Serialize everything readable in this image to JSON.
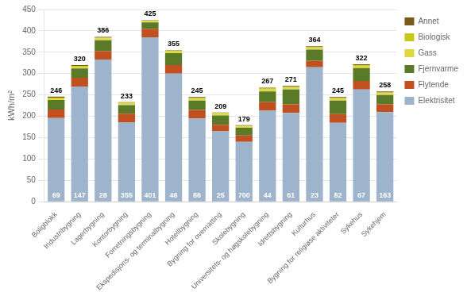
{
  "chart_data": {
    "type": "bar",
    "stacked": true,
    "grid": true,
    "legend": "right",
    "ylabel": "kWh/m²",
    "ylim": [
      0,
      450
    ],
    "yticks": [
      0,
      50,
      100,
      150,
      200,
      250,
      300,
      350,
      400,
      450
    ],
    "categories": [
      "Boligblokk",
      "Industribygning",
      "Lagerbygning",
      "Kontorbygning",
      "Forretningsbygning",
      "Ekspedisjons- og terminalbygning",
      "Hotellbygning",
      "Bygning for overnatting",
      "Skolebygning",
      "Universitets- og høgskolebygning",
      "Idrettsbygning",
      "Kulturhus",
      "Bygning for religiøse aktiviteter",
      "Sykehus",
      "Sykehjem"
    ],
    "series": [
      {
        "name": "Elektrisitet",
        "color": "#9DB4CC",
        "values": [
          196,
          270,
          333,
          186,
          385,
          300,
          195,
          165,
          140,
          213,
          208,
          315,
          185,
          263,
          210
        ]
      },
      {
        "name": "Flytende",
        "color": "#C05020",
        "values": [
          20,
          20,
          20,
          20,
          20,
          20,
          20,
          15,
          15,
          20,
          20,
          15,
          20,
          20,
          18
        ]
      },
      {
        "name": "Fjernvarme",
        "color": "#5A7A28",
        "values": [
          22,
          22,
          25,
          20,
          15,
          28,
          22,
          22,
          18,
          25,
          35,
          26,
          32,
          30,
          22
        ]
      },
      {
        "name": "Gass",
        "color": "#E0D840",
        "values": [
          4,
          4,
          4,
          4,
          3,
          4,
          4,
          4,
          3,
          5,
          4,
          4,
          4,
          5,
          4
        ]
      },
      {
        "name": "Biologisk",
        "color": "#C8C818",
        "values": [
          2,
          2,
          2,
          2,
          1,
          2,
          2,
          2,
          2,
          3,
          2,
          2,
          2,
          2,
          2
        ]
      },
      {
        "name": "Annet",
        "color": "#7A5A18",
        "values": [
          2,
          2,
          2,
          1,
          1,
          1,
          2,
          1,
          1,
          1,
          2,
          2,
          2,
          2,
          2
        ]
      }
    ],
    "annotations": [
      {
        "x": "Boligblokk",
        "y": 246,
        "text": "246",
        "color": "#000000"
      },
      {
        "x": "Industribygning",
        "y": 320,
        "text": "320",
        "color": "#000000"
      },
      {
        "x": "Lagerbygning",
        "y": 386,
        "text": "386",
        "color": "#000000"
      },
      {
        "x": "Kontorbygning",
        "y": 233,
        "text": "233",
        "color": "#000000"
      },
      {
        "x": "Forretningsbygning",
        "y": 425,
        "text": "425",
        "color": "#000000"
      },
      {
        "x": "Ekspedisjons- og terminalbygning",
        "y": 355,
        "text": "355",
        "color": "#000000"
      },
      {
        "x": "Hotellbygning",
        "y": 245,
        "text": "245",
        "color": "#000000"
      },
      {
        "x": "Bygning for overnatting",
        "y": 209,
        "text": "209",
        "color": "#000000"
      },
      {
        "x": "Skolebygning",
        "y": 179,
        "text": "179",
        "color": "#000000"
      },
      {
        "x": "Universitets- og høgskolebygning",
        "y": 267,
        "text": "267",
        "color": "#000000"
      },
      {
        "x": "Idrettsbygning",
        "y": 271,
        "text": "271",
        "color": "#000000"
      },
      {
        "x": "Kulturhus",
        "y": 364,
        "text": "364",
        "color": "#000000"
      },
      {
        "x": "Bygning for religiøse aktiviteter",
        "y": 245,
        "text": "245",
        "color": "#000000"
      },
      {
        "x": "Sykehus",
        "y": 322,
        "text": "322",
        "color": "#000000"
      },
      {
        "x": "Sykehjem",
        "y": 258,
        "text": "258",
        "color": "#000000"
      },
      {
        "x": "Boligblokk",
        "y": 0,
        "text": "69",
        "color": "#FFFFFF"
      },
      {
        "x": "Industribygning",
        "y": 0,
        "text": "147",
        "color": "#FFFFFF"
      },
      {
        "x": "Lagerbygning",
        "y": 0,
        "text": "28",
        "color": "#FFFFFF"
      },
      {
        "x": "Kontorbygning",
        "y": 0,
        "text": "355",
        "color": "#FFFFFF"
      },
      {
        "x": "Forretningsbygning",
        "y": 0,
        "text": "401",
        "color": "#FFFFFF"
      },
      {
        "x": "Ekspedisjons- og terminalbygning",
        "y": 0,
        "text": "46",
        "color": "#FFFFFF"
      },
      {
        "x": "Hotellbygning",
        "y": 0,
        "text": "86",
        "color": "#FFFFFF"
      },
      {
        "x": "Bygning for overnatting",
        "y": 0,
        "text": "25",
        "color": "#FFFFFF"
      },
      {
        "x": "Skolebygning",
        "y": 0,
        "text": "700",
        "color": "#FFFFFF"
      },
      {
        "x": "Universitets- og høgskolebygning",
        "y": 0,
        "text": "44",
        "color": "#FFFFFF"
      },
      {
        "x": "Idrettsbygning",
        "y": 0,
        "text": "61",
        "color": "#FFFFFF"
      },
      {
        "x": "Kulturhus",
        "y": 0,
        "text": "23",
        "color": "#FFFFFF"
      },
      {
        "x": "Bygning for religiøse aktiviteter",
        "y": 0,
        "text": "82",
        "color": "#FFFFFF"
      },
      {
        "x": "Sykehus",
        "y": 0,
        "text": "67",
        "color": "#FFFFFF"
      },
      {
        "x": "Sykehjem",
        "y": 0,
        "text": "163",
        "color": "#FFFFFF"
      }
    ]
  }
}
